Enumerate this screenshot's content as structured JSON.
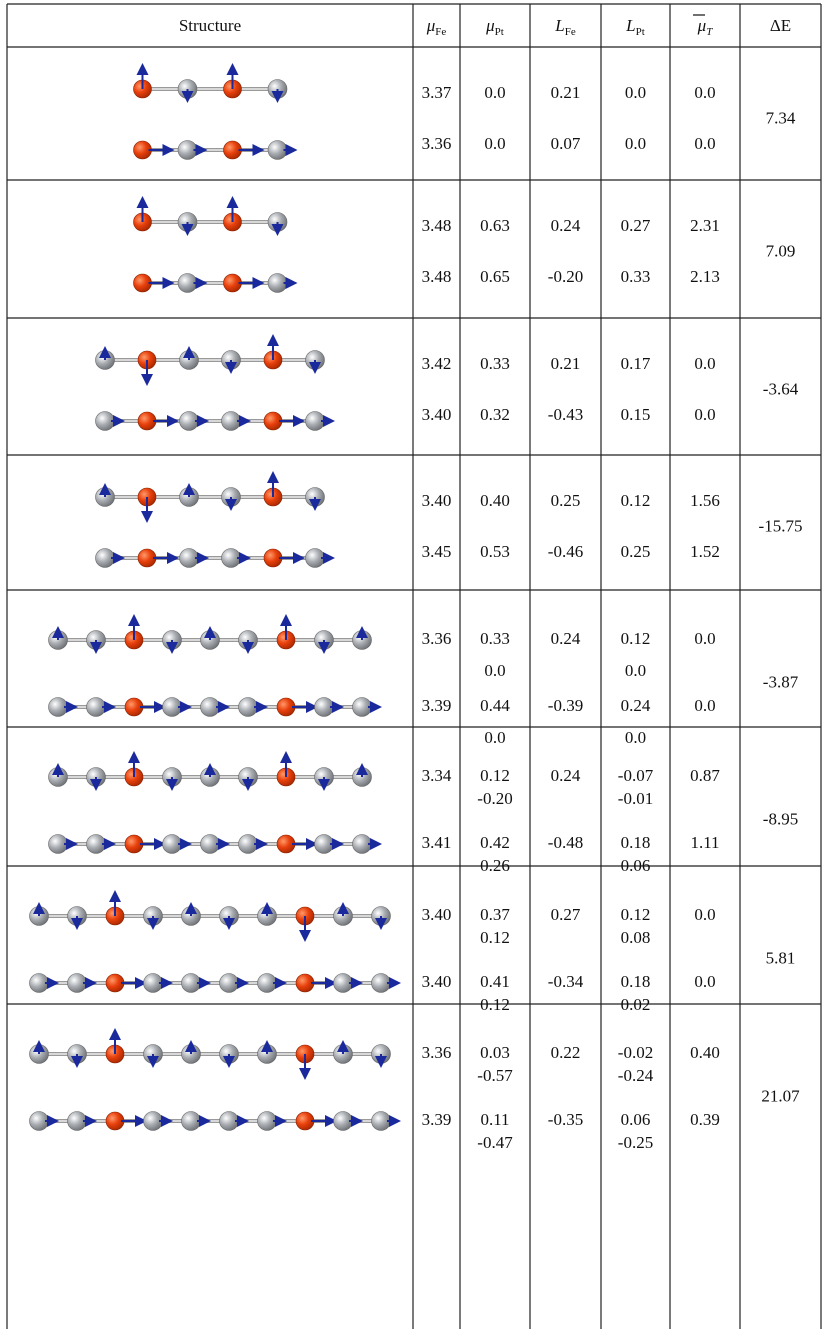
{
  "table": {
    "header": [
      {
        "text": "Structure"
      },
      {
        "symbol": "μ",
        "sub": "Fe"
      },
      {
        "symbol": "μ",
        "sub": "Pt"
      },
      {
        "symbol": "L",
        "sub": "Fe"
      },
      {
        "symbol": "L",
        "sub": "Pt"
      },
      {
        "symbol": "μ",
        "sub": "T"
      },
      {
        "text": "ΔE"
      }
    ],
    "rows": [
      {
        "upper": [
          "3.37",
          [
            "0.0"
          ],
          "0.21",
          [
            "0.0"
          ],
          "0.0"
        ],
        "lower": [
          "3.36",
          [
            "0.0"
          ],
          "0.07",
          [
            "0.0"
          ],
          "0.0"
        ],
        "delta_e": "7.34"
      },
      {
        "upper": [
          "3.48",
          [
            "0.63"
          ],
          "0.24",
          [
            "0.27"
          ],
          "2.31"
        ],
        "lower": [
          "3.48",
          [
            "0.65"
          ],
          "-0.20",
          [
            "0.33"
          ],
          "2.13"
        ],
        "delta_e": "7.09"
      },
      {
        "upper": [
          "3.42",
          [
            "0.33"
          ],
          "0.21",
          [
            "0.17"
          ],
          "0.0"
        ],
        "lower": [
          "3.40",
          [
            "0.32"
          ],
          "-0.43",
          [
            "0.15"
          ],
          "0.0"
        ],
        "delta_e": "-3.64"
      },
      {
        "upper": [
          "3.40",
          [
            "0.40"
          ],
          "0.25",
          [
            "0.12"
          ],
          "1.56"
        ],
        "lower": [
          "3.45",
          [
            "0.53"
          ],
          "-0.46",
          [
            "0.25"
          ],
          "1.52"
        ],
        "delta_e": "-15.75"
      },
      {
        "upper": [
          "3.36",
          [
            "0.33",
            "0.0"
          ],
          "0.24",
          [
            "0.12",
            "0.0"
          ],
          "0.0"
        ],
        "lower": [
          "3.39",
          [
            "0.44",
            "0.0"
          ],
          "-0.39",
          [
            "0.24",
            "0.0"
          ],
          "0.0"
        ],
        "delta_e": "-3.87"
      },
      {
        "upper": [
          "3.34",
          [
            "0.12",
            "-0.20"
          ],
          "0.24",
          [
            "-0.07",
            "-0.01"
          ],
          "0.87"
        ],
        "lower": [
          "3.41",
          [
            "0.42",
            "0.26"
          ],
          "-0.48",
          [
            "0.18",
            "0.06"
          ],
          "1.11"
        ],
        "delta_e": "-8.95"
      },
      {
        "upper": [
          "3.40",
          [
            "0.37",
            "0.12"
          ],
          "0.27",
          [
            "0.12",
            "0.08"
          ],
          "0.0"
        ],
        "lower": [
          "3.40",
          [
            "0.41",
            "0.12"
          ],
          "-0.34",
          [
            "0.18",
            "0.02"
          ],
          "0.0"
        ],
        "delta_e": "5.81"
      },
      {
        "upper": [
          "3.36",
          [
            "0.03",
            "-0.57"
          ],
          "0.22",
          [
            "-0.02",
            "-0.24"
          ],
          "0.40"
        ],
        "lower": [
          "3.39",
          [
            "0.11",
            "-0.47"
          ],
          "-0.35",
          [
            "0.06",
            "-0.25"
          ],
          "0.39"
        ],
        "delta_e": "21.07"
      }
    ]
  }
}
